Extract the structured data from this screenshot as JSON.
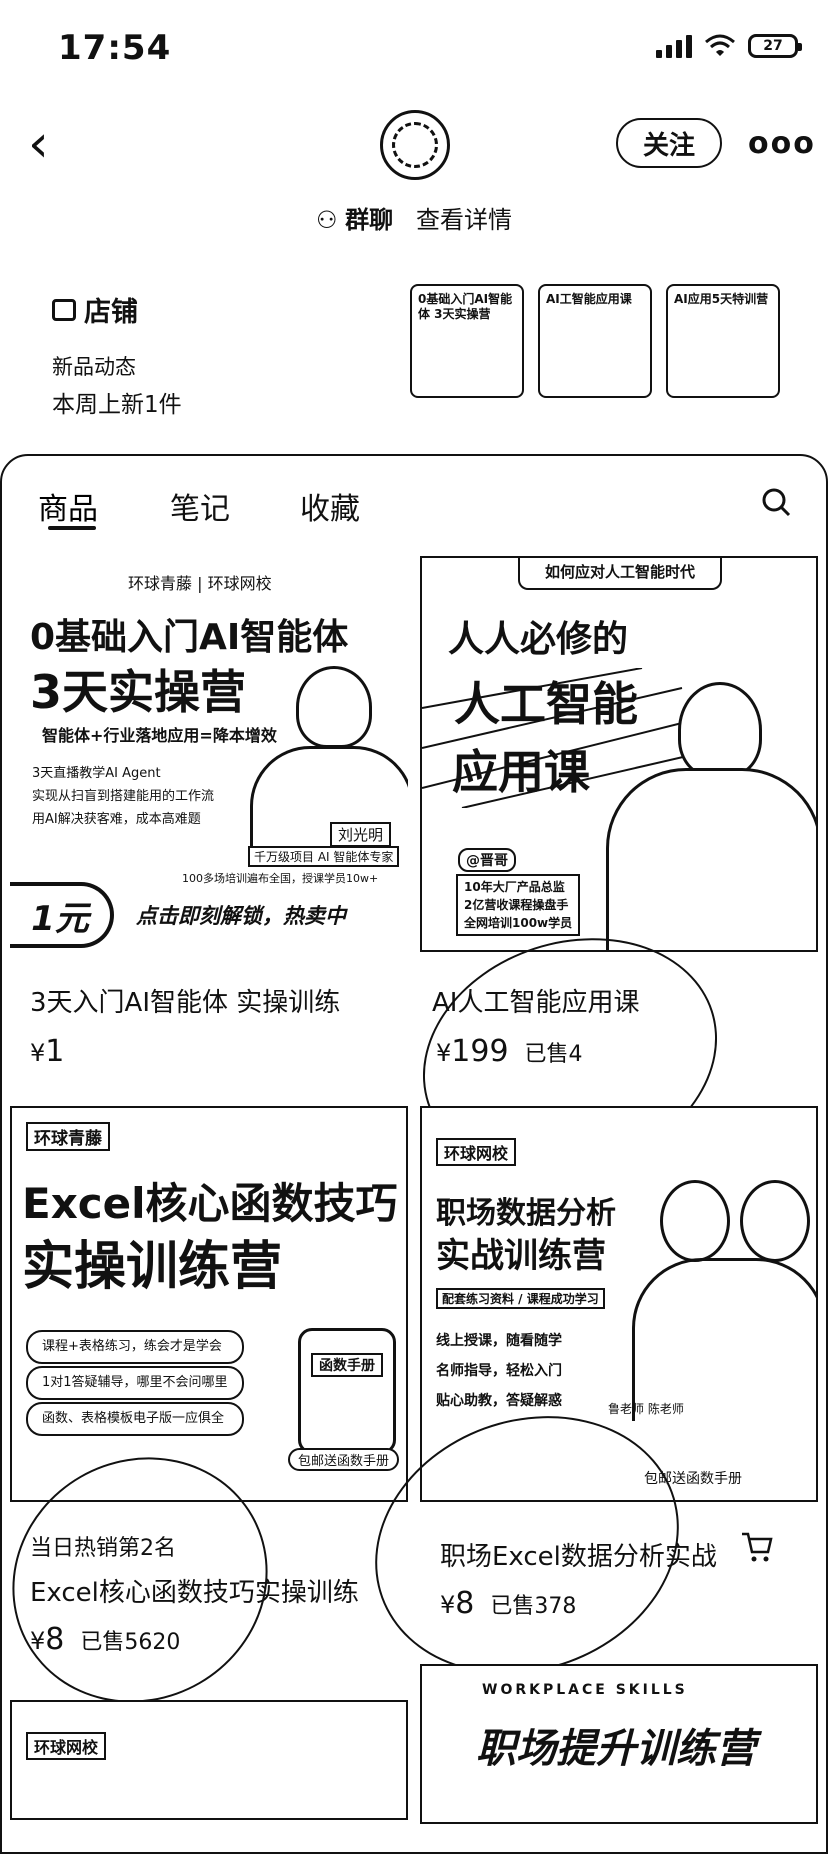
{
  "status": {
    "time": "17:54",
    "battery": "27"
  },
  "header": {
    "follow_label": "关注",
    "more_label": "ooo",
    "group_chat": "群聊",
    "view_details": "查看详情"
  },
  "shop": {
    "title": "店铺",
    "new_label": "新品动态",
    "new_count": "本周上新1件",
    "thumbs": [
      {
        "text": "0基础入门AI智能体 3天实操营"
      },
      {
        "text": "AI工智能应用课"
      },
      {
        "text": "AI应用5天特训营"
      }
    ]
  },
  "tabs": [
    "商品",
    "笔记",
    "收藏"
  ],
  "products": [
    {
      "banner": {
        "brand": "环球青藤 | 环球网校",
        "headline1": "0基础入门AI智能体",
        "headline2": "3天实操营",
        "subhead": "智能体+行业落地应用=降本增效",
        "bullets": [
          "3天直播教学AI Agent",
          "实现从扫盲到搭建能用的工作流",
          "用AI解决获客难，成本高难题"
        ],
        "teacher": "刘光明",
        "teacher_title": "千万级项目 AI 智能体专家",
        "note": "100多场培训遍布全国，授课学员10w+",
        "price_badge": "1元",
        "cta": "点击即刻解锁，热卖中"
      },
      "title": "3天入门AI智能体 实操训练",
      "currency": "¥",
      "price": "1",
      "sold": ""
    },
    {
      "banner": {
        "top": "如何应对人工智能时代",
        "headline1": "人人必修的",
        "headline2": "人工智能",
        "headline3": "应用课",
        "tag": "@晋哥",
        "lines": [
          "10年大厂产品总监",
          "2亿营收课程操盘手",
          "全网培训100w学员"
        ]
      },
      "title": "AI人工智能应用课",
      "currency": "¥",
      "price": "199",
      "sold": "已售4"
    },
    {
      "banner": {
        "brand": "环球青藤",
        "headline1": "Excel核心函数技巧",
        "headline2": "实操训练营",
        "lines": [
          "课程+表格练习，练会才是学会",
          "1对1答疑辅导，哪里不会问哪里",
          "函数、表格模板电子版一应俱全"
        ],
        "gift": "包邮送函数手册",
        "book": "函数手册"
      },
      "rank": "当日热销第2名",
      "title": "Excel核心函数技巧实操训练",
      "currency": "¥",
      "price": "8",
      "sold": "已售5620"
    },
    {
      "banner": {
        "brand": "环球网校",
        "headline1": "职场数据分析",
        "headline2": "实战训练营",
        "sub": "配套练习资料 / 课程成功学习",
        "lines": [
          "线上授课，随看随学",
          "名师指导，轻松入门",
          "贴心助教，答疑解惑"
        ],
        "teachers": "鲁老师  陈老师",
        "gift": "包邮送函数手册"
      },
      "title": "职场Excel数据分析实战",
      "currency": "¥",
      "price": "8",
      "sold": "已售378"
    },
    {
      "banner": {
        "brand": "环球网校",
        "headline": ""
      }
    },
    {
      "banner": {
        "top": "WORKPLACE SKILLS",
        "headline": "职场提升训练营"
      }
    }
  ]
}
